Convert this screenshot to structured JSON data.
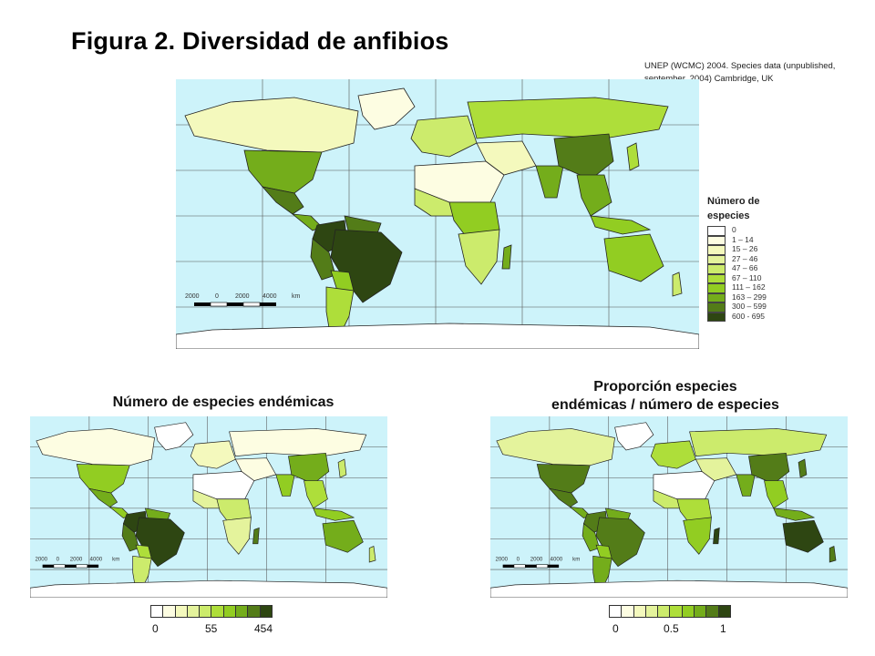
{
  "header": {
    "title": "Figura 2. Diversidad de anfibios",
    "source_line1": "UNEP (WCMC) 2004. Species data (unpublished,",
    "source_line2": "september, 2004) Cambridge, UK"
  },
  "main_map": {
    "legend_title_line1": "Número de",
    "legend_title_line2": "especies",
    "legend": [
      {
        "label": "0",
        "color": "#ffffff"
      },
      {
        "label": "1 – 14",
        "color": "#fdfde2"
      },
      {
        "label": "15 – 26",
        "color": "#f4f9bd"
      },
      {
        "label": "27 – 46",
        "color": "#e4f39c"
      },
      {
        "label": "47 – 66",
        "color": "#cceb6c"
      },
      {
        "label": "67 – 110",
        "color": "#aede3a"
      },
      {
        "label": "111 – 162",
        "color": "#92cd22"
      },
      {
        "label": "163 – 299",
        "color": "#74ad1b"
      },
      {
        "label": "300 – 599",
        "color": "#537c18"
      },
      {
        "label": "600 - 695",
        "color": "#2e4612"
      }
    ],
    "scale_labels": [
      "2000",
      "0",
      "2000",
      "4000",
      "km"
    ]
  },
  "endemic_map": {
    "title": "Número de especies endémicas",
    "ramp_labels": [
      "0",
      "55",
      "454"
    ],
    "scale_labels": [
      "2000",
      "0",
      "2000",
      "4000",
      "km"
    ]
  },
  "proportion_map": {
    "title_line1": "Proporción especies",
    "title_line2": "endémicas / número de especies",
    "ramp_labels": [
      "0",
      "0.5",
      "1"
    ],
    "scale_labels": [
      "2000",
      "0",
      "2000",
      "4000",
      "km"
    ]
  },
  "colors": {
    "ocean": "#cdf3fa",
    "land_light": "#fdfde2",
    "land_dark": "#2e4612"
  }
}
